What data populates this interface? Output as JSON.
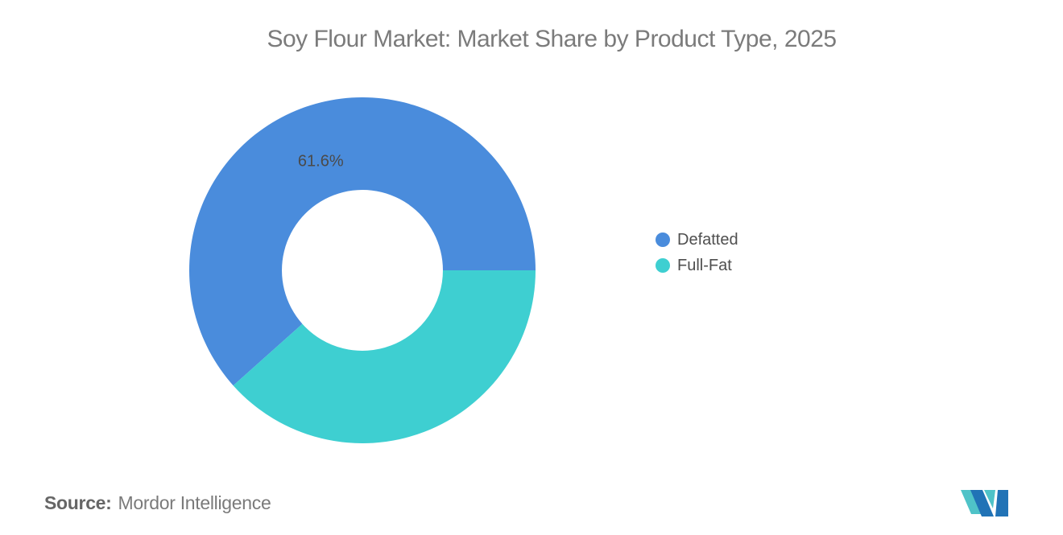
{
  "title": "Soy Flour Market: Market Share by Product Type, 2025",
  "chart_data": {
    "type": "pie",
    "subtype": "donut",
    "title": "Soy Flour Market: Market Share by Product Type, 2025",
    "series": [
      {
        "name": "Defatted",
        "value": 61.6,
        "label": "61.6%",
        "color": "#4A8CDC"
      },
      {
        "name": "Full-Fat",
        "value": 38.4,
        "label": "",
        "color": "#3ECFD1"
      }
    ],
    "legend_position": "right",
    "legend_marker": "circle",
    "start_angle_deg": 228.24,
    "inner_radius_ratio": 0.465,
    "label_radius_ratio": 0.675,
    "label_color": "#4a4a4a",
    "background": "#ffffff"
  },
  "source": {
    "prefix": "Source:",
    "text": "Mordor Intelligence"
  },
  "logo": {
    "name": "mordor-intelligence-logo",
    "teal": "#4FC3C8",
    "blue": "#2173B6"
  }
}
